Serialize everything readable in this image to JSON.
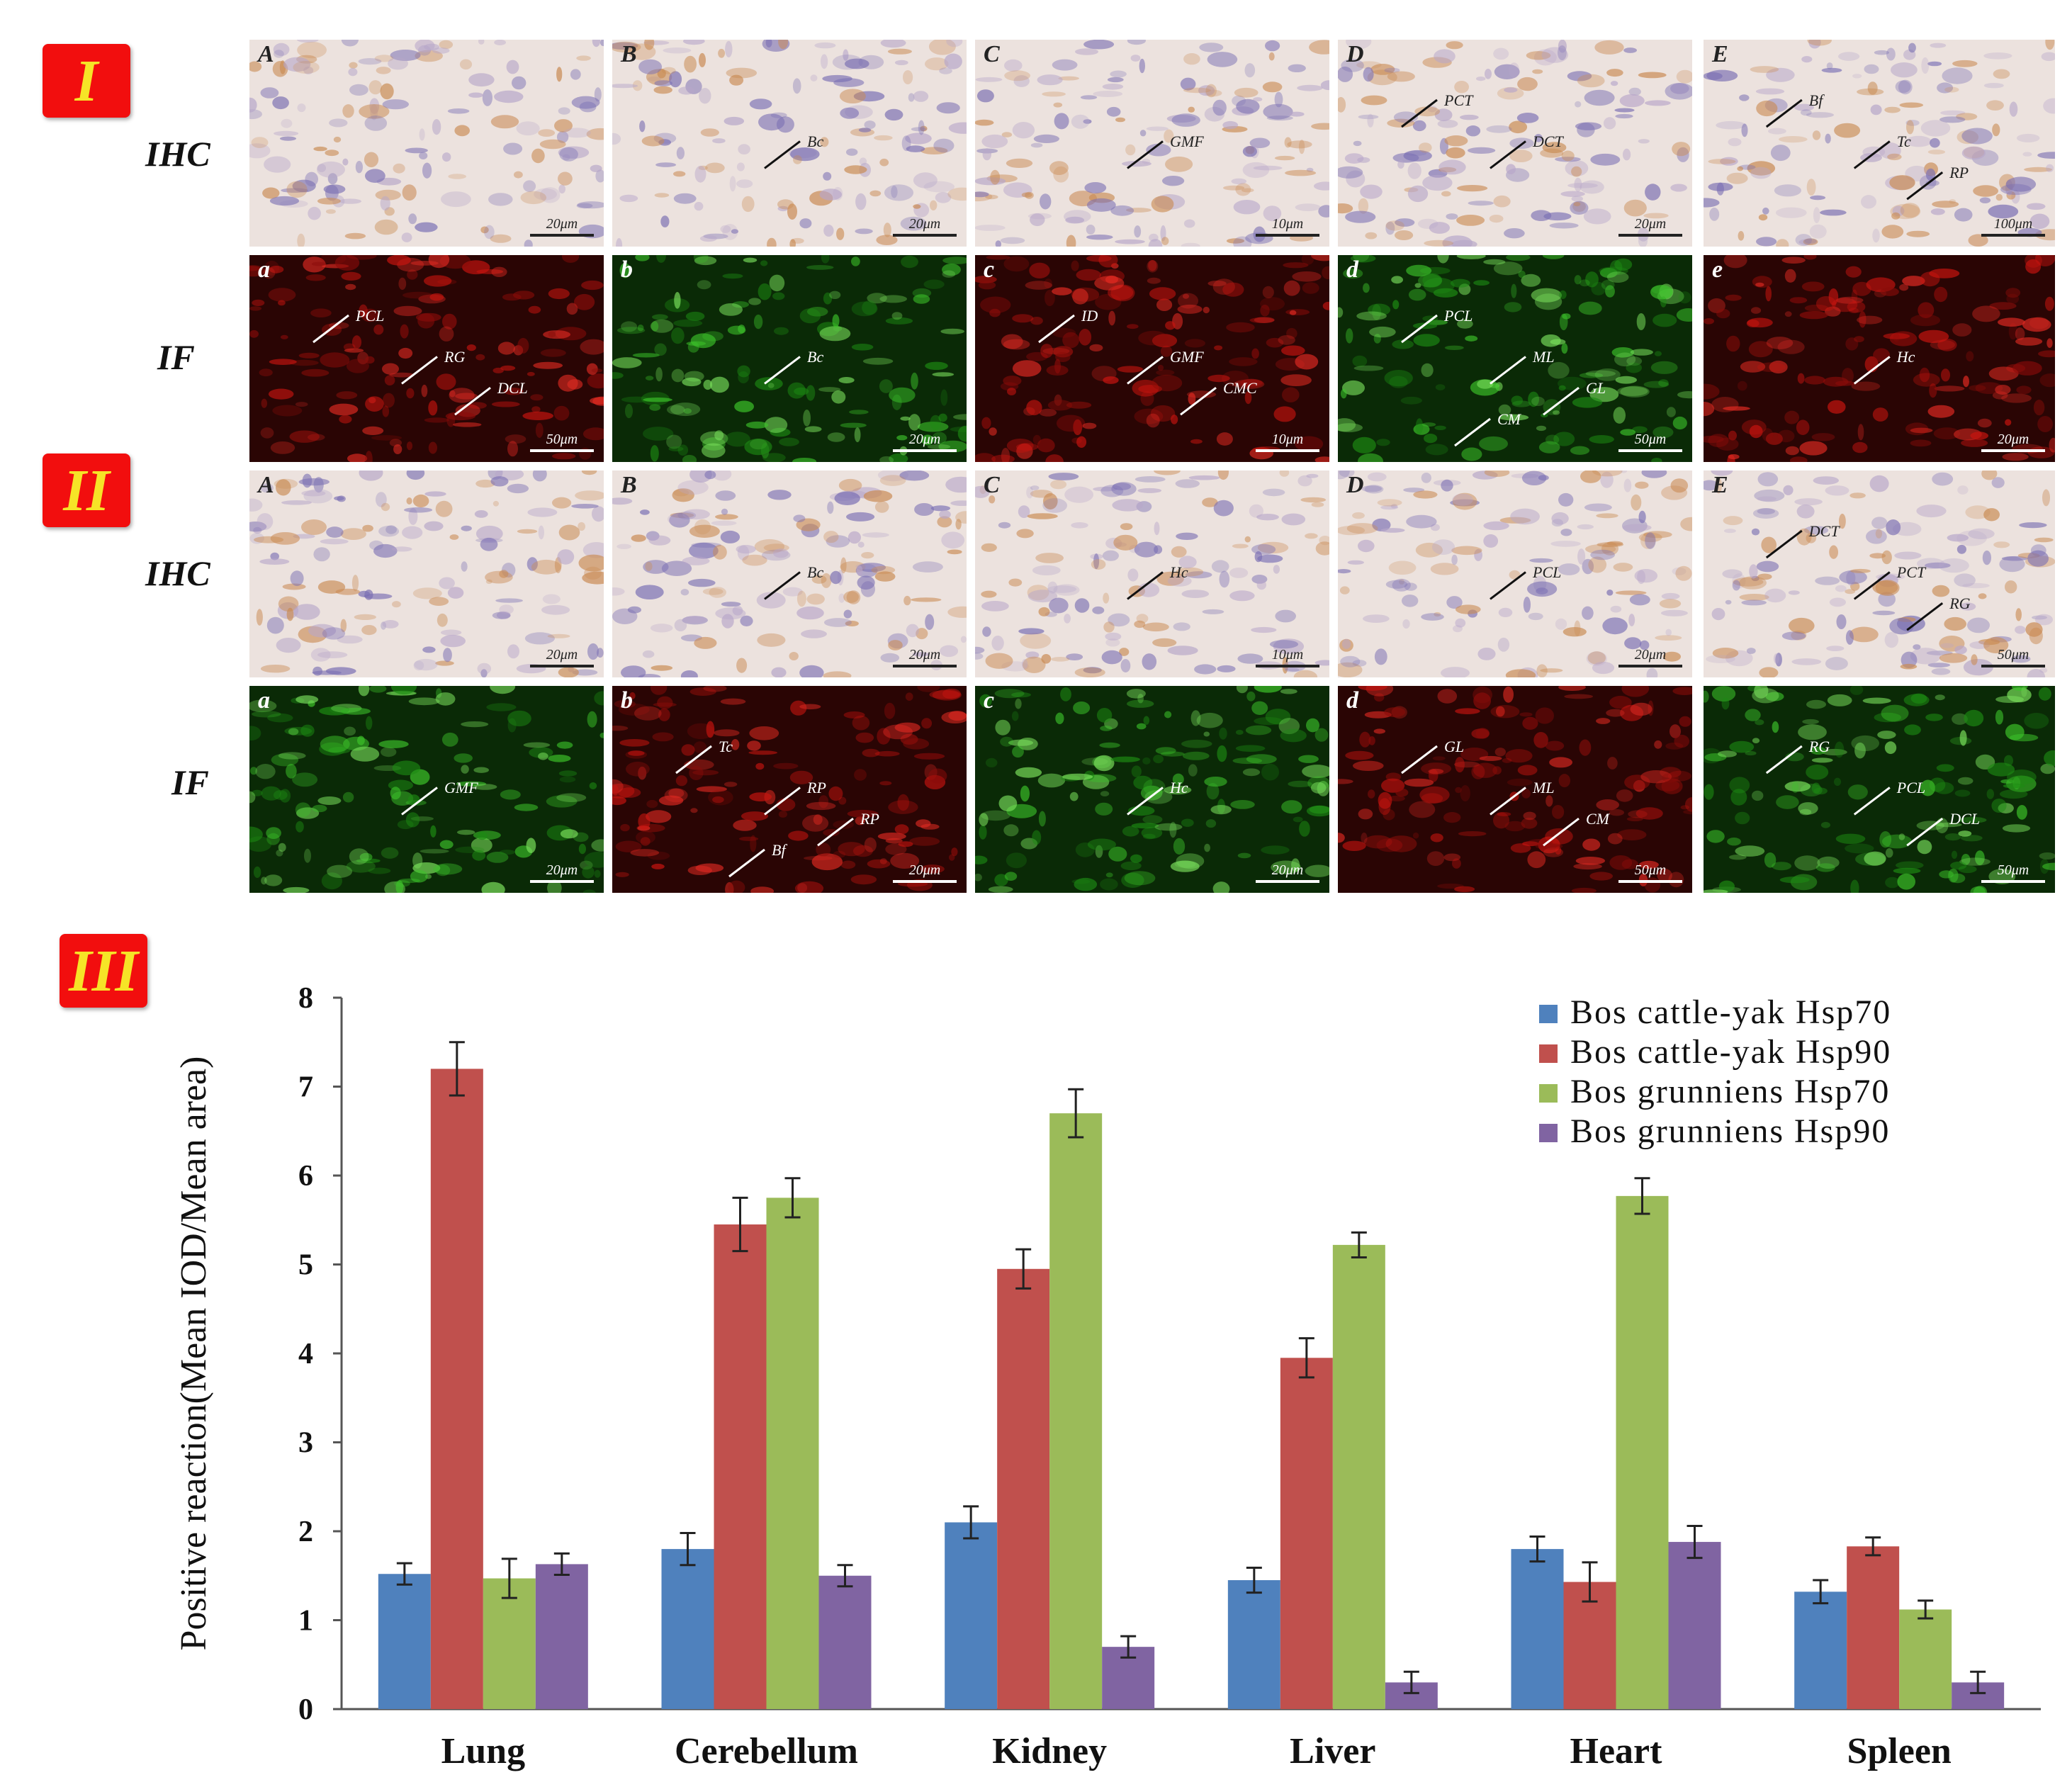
{
  "sections": {
    "I": "I",
    "II": "II",
    "III": "III"
  },
  "row_labels": {
    "ihc": "IHC",
    "if": "IF"
  },
  "panels": {
    "I_ihc": [
      {
        "letter": "A",
        "scale": "20μm",
        "labels": []
      },
      {
        "letter": "B",
        "scale": "20μm",
        "labels": [
          "Bc"
        ]
      },
      {
        "letter": "C",
        "scale": "10μm",
        "labels": [
          "GMF"
        ]
      },
      {
        "letter": "D",
        "scale": "20μm",
        "labels": [
          "DCT",
          "PCT"
        ]
      },
      {
        "letter": "E",
        "scale": "100μm",
        "labels": [
          "Tc",
          "Bf",
          "RP"
        ]
      }
    ],
    "I_if": [
      {
        "letter": "a",
        "scale": "50μm",
        "labels": [
          "RG",
          "PCL",
          "DCL"
        ]
      },
      {
        "letter": "b",
        "scale": "20μm",
        "labels": [
          "Bc"
        ]
      },
      {
        "letter": "c",
        "scale": "10μm",
        "labels": [
          "GMF",
          "ID",
          "CMC"
        ]
      },
      {
        "letter": "d",
        "scale": "50μm",
        "labels": [
          "ML",
          "PCL",
          "GL",
          "CM"
        ]
      },
      {
        "letter": "e",
        "scale": "20μm",
        "labels": [
          "Hc"
        ]
      }
    ],
    "II_ihc": [
      {
        "letter": "A",
        "scale": "20μm",
        "labels": []
      },
      {
        "letter": "B",
        "scale": "20μm",
        "labels": [
          "Bc"
        ]
      },
      {
        "letter": "C",
        "scale": "10μm",
        "labels": [
          "Hc"
        ]
      },
      {
        "letter": "D",
        "scale": "20μm",
        "labels": [
          "PCL"
        ]
      },
      {
        "letter": "E",
        "scale": "50μm",
        "labels": [
          "PCT",
          "DCT",
          "RG"
        ]
      }
    ],
    "II_if": [
      {
        "letter": "a",
        "scale": "20μm",
        "labels": [
          "GMF"
        ]
      },
      {
        "letter": "b",
        "scale": "20μm",
        "labels": [
          "RP",
          "Tc",
          "RP",
          "Bf"
        ]
      },
      {
        "letter": "c",
        "scale": "20μm",
        "labels": [
          "Hc"
        ]
      },
      {
        "letter": "d",
        "scale": "50μm",
        "labels": [
          "ML",
          "GL",
          "CM"
        ]
      },
      {
        "letter": "",
        "scale": "50μm",
        "labels": [
          "PCL",
          "RG",
          "DCL"
        ]
      }
    ]
  },
  "colors": {
    "badge": "#f20e0e",
    "badge_text": "#f6e427",
    "ihc_bg": "#ece2de",
    "if_red": "#a3100d",
    "if_green": "#2aa81e",
    "series": [
      "#4f81bd",
      "#c0504d",
      "#9bbb59",
      "#8064a2"
    ]
  },
  "chart_data": {
    "type": "bar",
    "title": "",
    "xlabel": "",
    "ylabel": "Positive reaction(Mean IOD/Mean area)",
    "ylim": [
      0,
      8
    ],
    "yticks": [
      "0",
      "1",
      "2",
      "3",
      "4",
      "5",
      "6",
      "7",
      "8"
    ],
    "categories": [
      "Lung",
      "Cerebellum",
      "Kidney",
      "Liver",
      "Heart",
      "Spleen"
    ],
    "legend_position": "top-right",
    "grid": false,
    "series": [
      {
        "name": "Bos cattle-yak Hsp70",
        "values": [
          1.52,
          1.8,
          2.1,
          1.45,
          1.8,
          1.32
        ],
        "errors": [
          0.12,
          0.18,
          0.18,
          0.14,
          0.14,
          0.13
        ]
      },
      {
        "name": "Bos cattle-yak Hsp90",
        "values": [
          7.2,
          5.45,
          4.95,
          3.95,
          1.43,
          1.83
        ],
        "errors": [
          0.3,
          0.3,
          0.22,
          0.22,
          0.22,
          0.1
        ]
      },
      {
        "name": "Bos grunniens Hsp70",
        "values": [
          1.47,
          5.75,
          6.7,
          5.22,
          5.77,
          1.12
        ],
        "errors": [
          0.22,
          0.22,
          0.27,
          0.14,
          0.2,
          0.1
        ]
      },
      {
        "name": "Bos grunniens Hsp90",
        "values": [
          1.63,
          1.5,
          0.7,
          0.3,
          1.88,
          0.3
        ],
        "errors": [
          0.12,
          0.12,
          0.12,
          0.12,
          0.18,
          0.12
        ]
      }
    ]
  }
}
